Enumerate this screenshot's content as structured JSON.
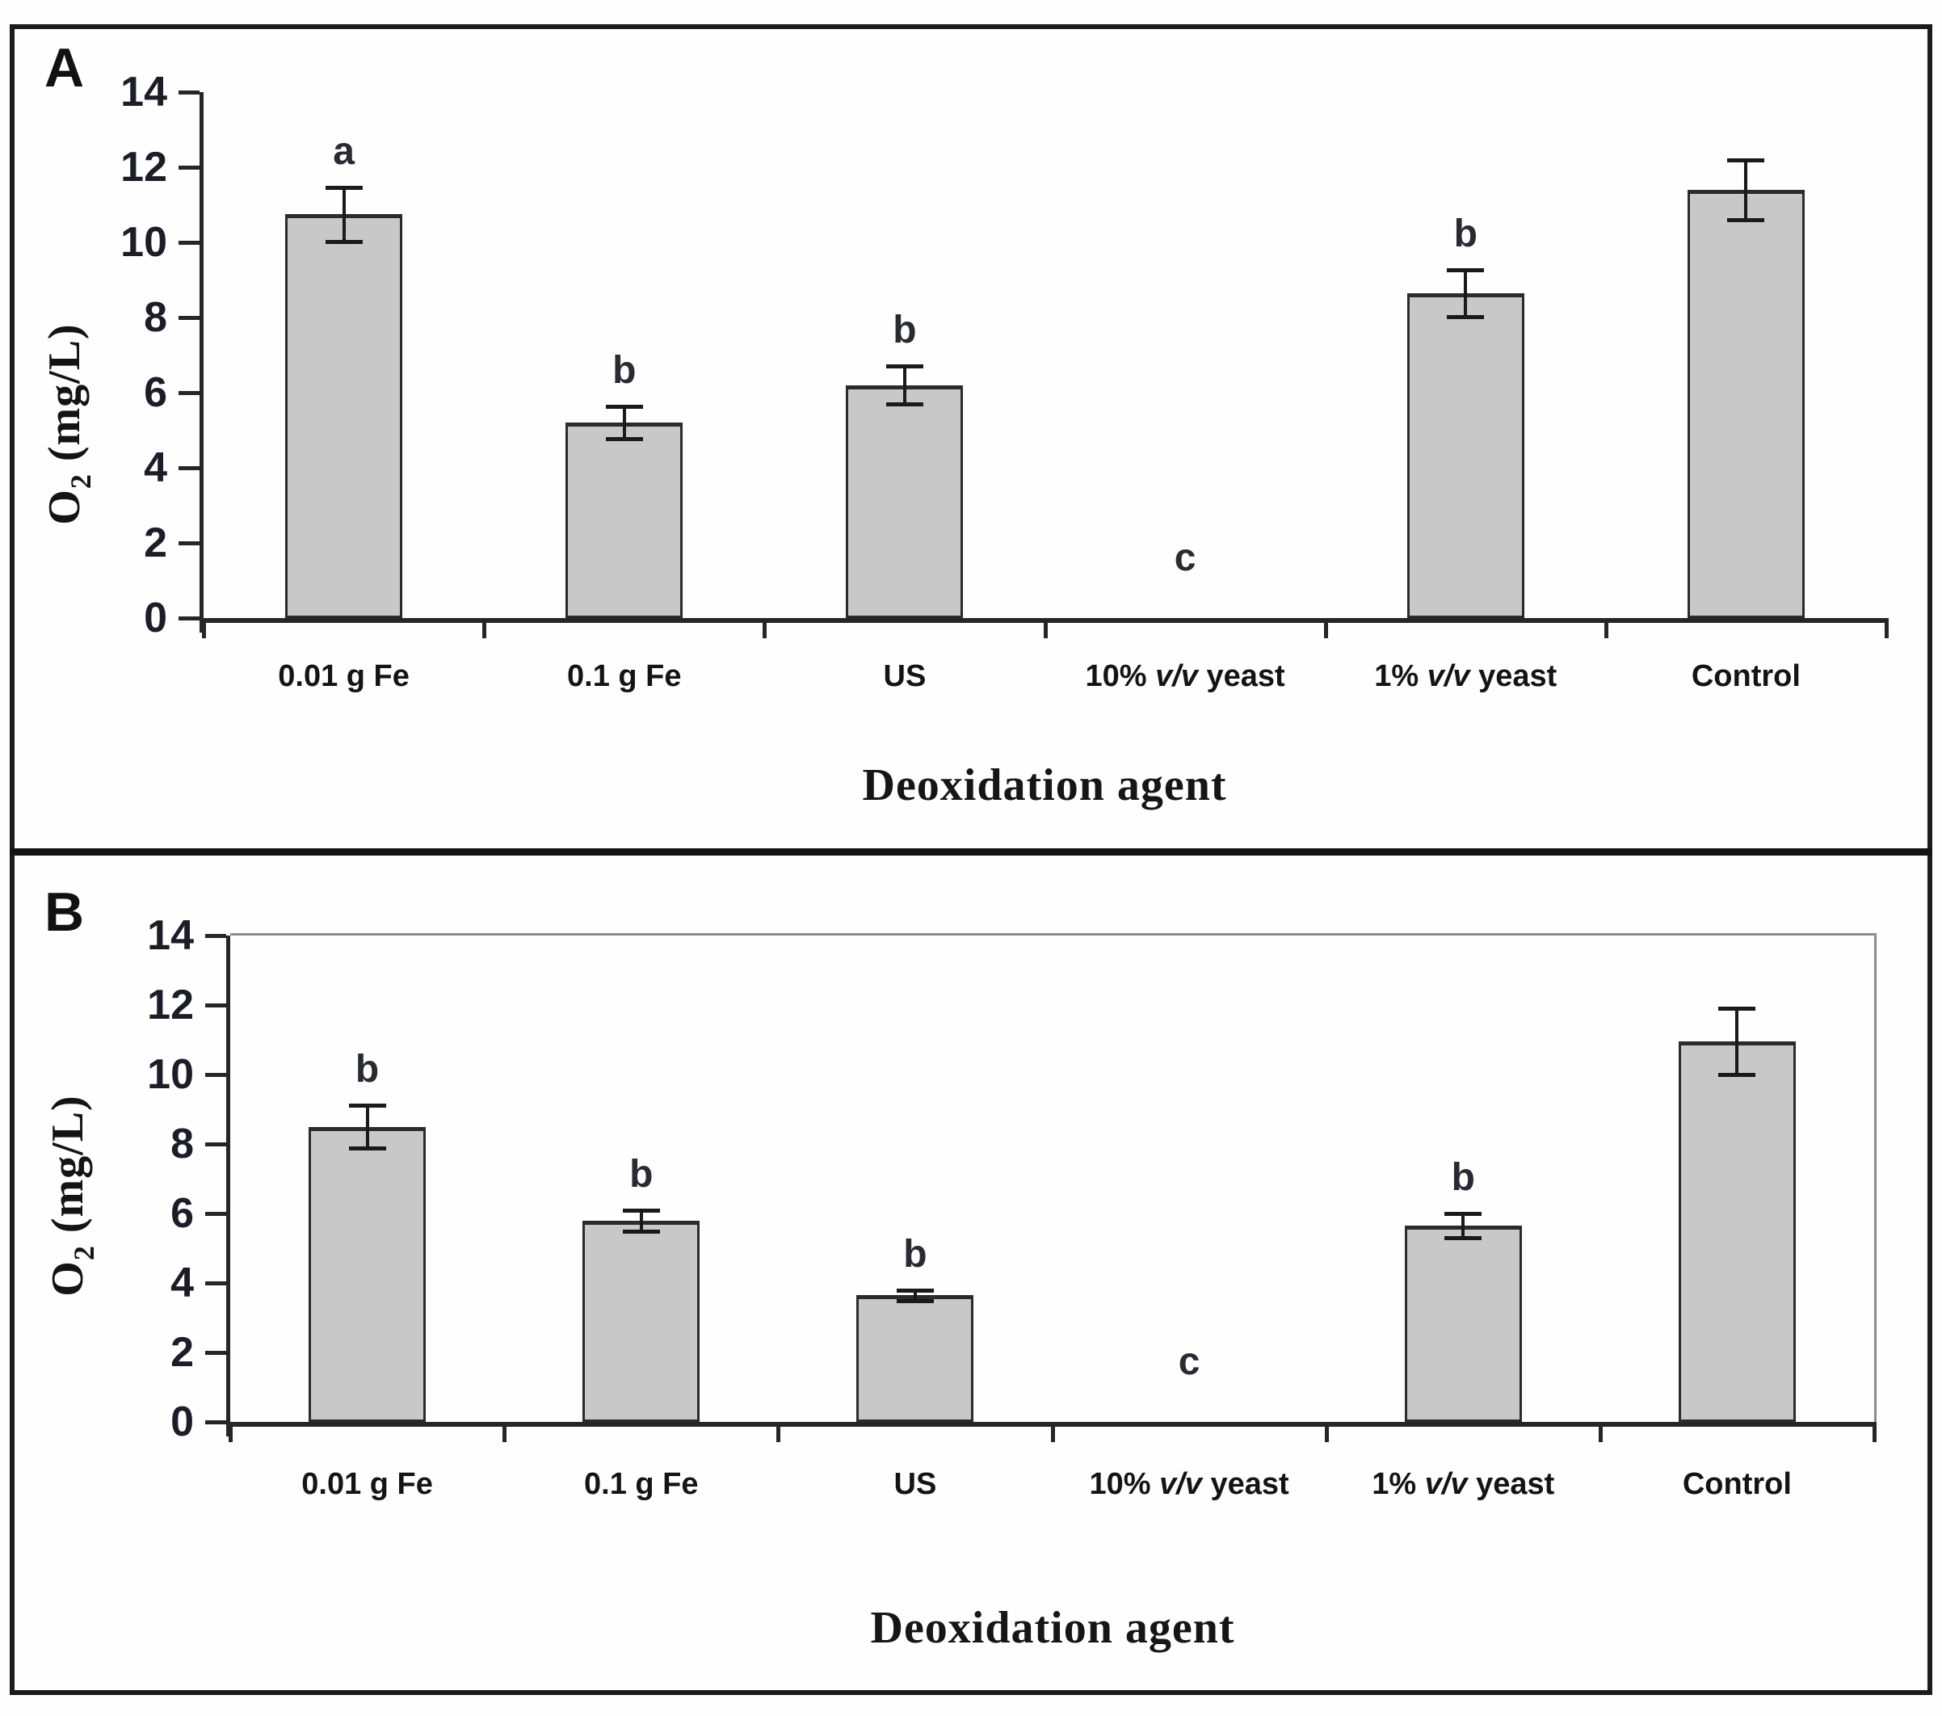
{
  "figure": {
    "panel_a": {
      "letter": "A"
    },
    "panel_b": {
      "letter": "B"
    }
  },
  "axis": {
    "ylabel_prefix": "O",
    "ylabel_sub": "2",
    "ylabel_suffix": " (mg/L)",
    "xlabel": "Deoxidation agent"
  },
  "chart_data": [
    {
      "type": "bar",
      "panel": "A",
      "title": "",
      "xlabel": "Deoxidation agent",
      "ylabel": "O2 (mg/L)",
      "ylim": [
        0,
        14
      ],
      "ytick_step": 2,
      "grid": false,
      "legend": false,
      "categories": [
        "0.01 g Fe",
        "0.1 g Fe",
        "US",
        "10% v/v yeast",
        "1% v/v yeast",
        "Control"
      ],
      "values": [
        10.75,
        5.2,
        6.2,
        0,
        8.65,
        11.4
      ],
      "errors": [
        0.72,
        0.43,
        0.5,
        0,
        0.62,
        0.8
      ],
      "sig_letters": [
        "a",
        "b",
        "b",
        "c",
        "b",
        ""
      ],
      "italic_token": "v/v",
      "bar_fill": "#c8c8c8",
      "bar_border": "#2b2b2b"
    },
    {
      "type": "bar",
      "panel": "B",
      "title": "",
      "xlabel": "Deoxidation agent",
      "ylabel": "O2 (mg/L)",
      "ylim": [
        0,
        14
      ],
      "ytick_step": 2,
      "grid": false,
      "legend": false,
      "categories": [
        "0.01 g Fe",
        "0.1 g Fe",
        "US",
        "10% v/v yeast",
        "1% v/v yeast",
        "Control"
      ],
      "values": [
        8.5,
        5.8,
        3.65,
        0,
        5.65,
        10.95
      ],
      "errors": [
        0.62,
        0.3,
        0.15,
        0,
        0.35,
        0.95
      ],
      "sig_letters": [
        "b",
        "b",
        "b",
        "c",
        "b",
        ""
      ],
      "italic_token": "v/v",
      "bar_fill": "#c8c8c8",
      "bar_border": "#2b2b2b"
    }
  ]
}
